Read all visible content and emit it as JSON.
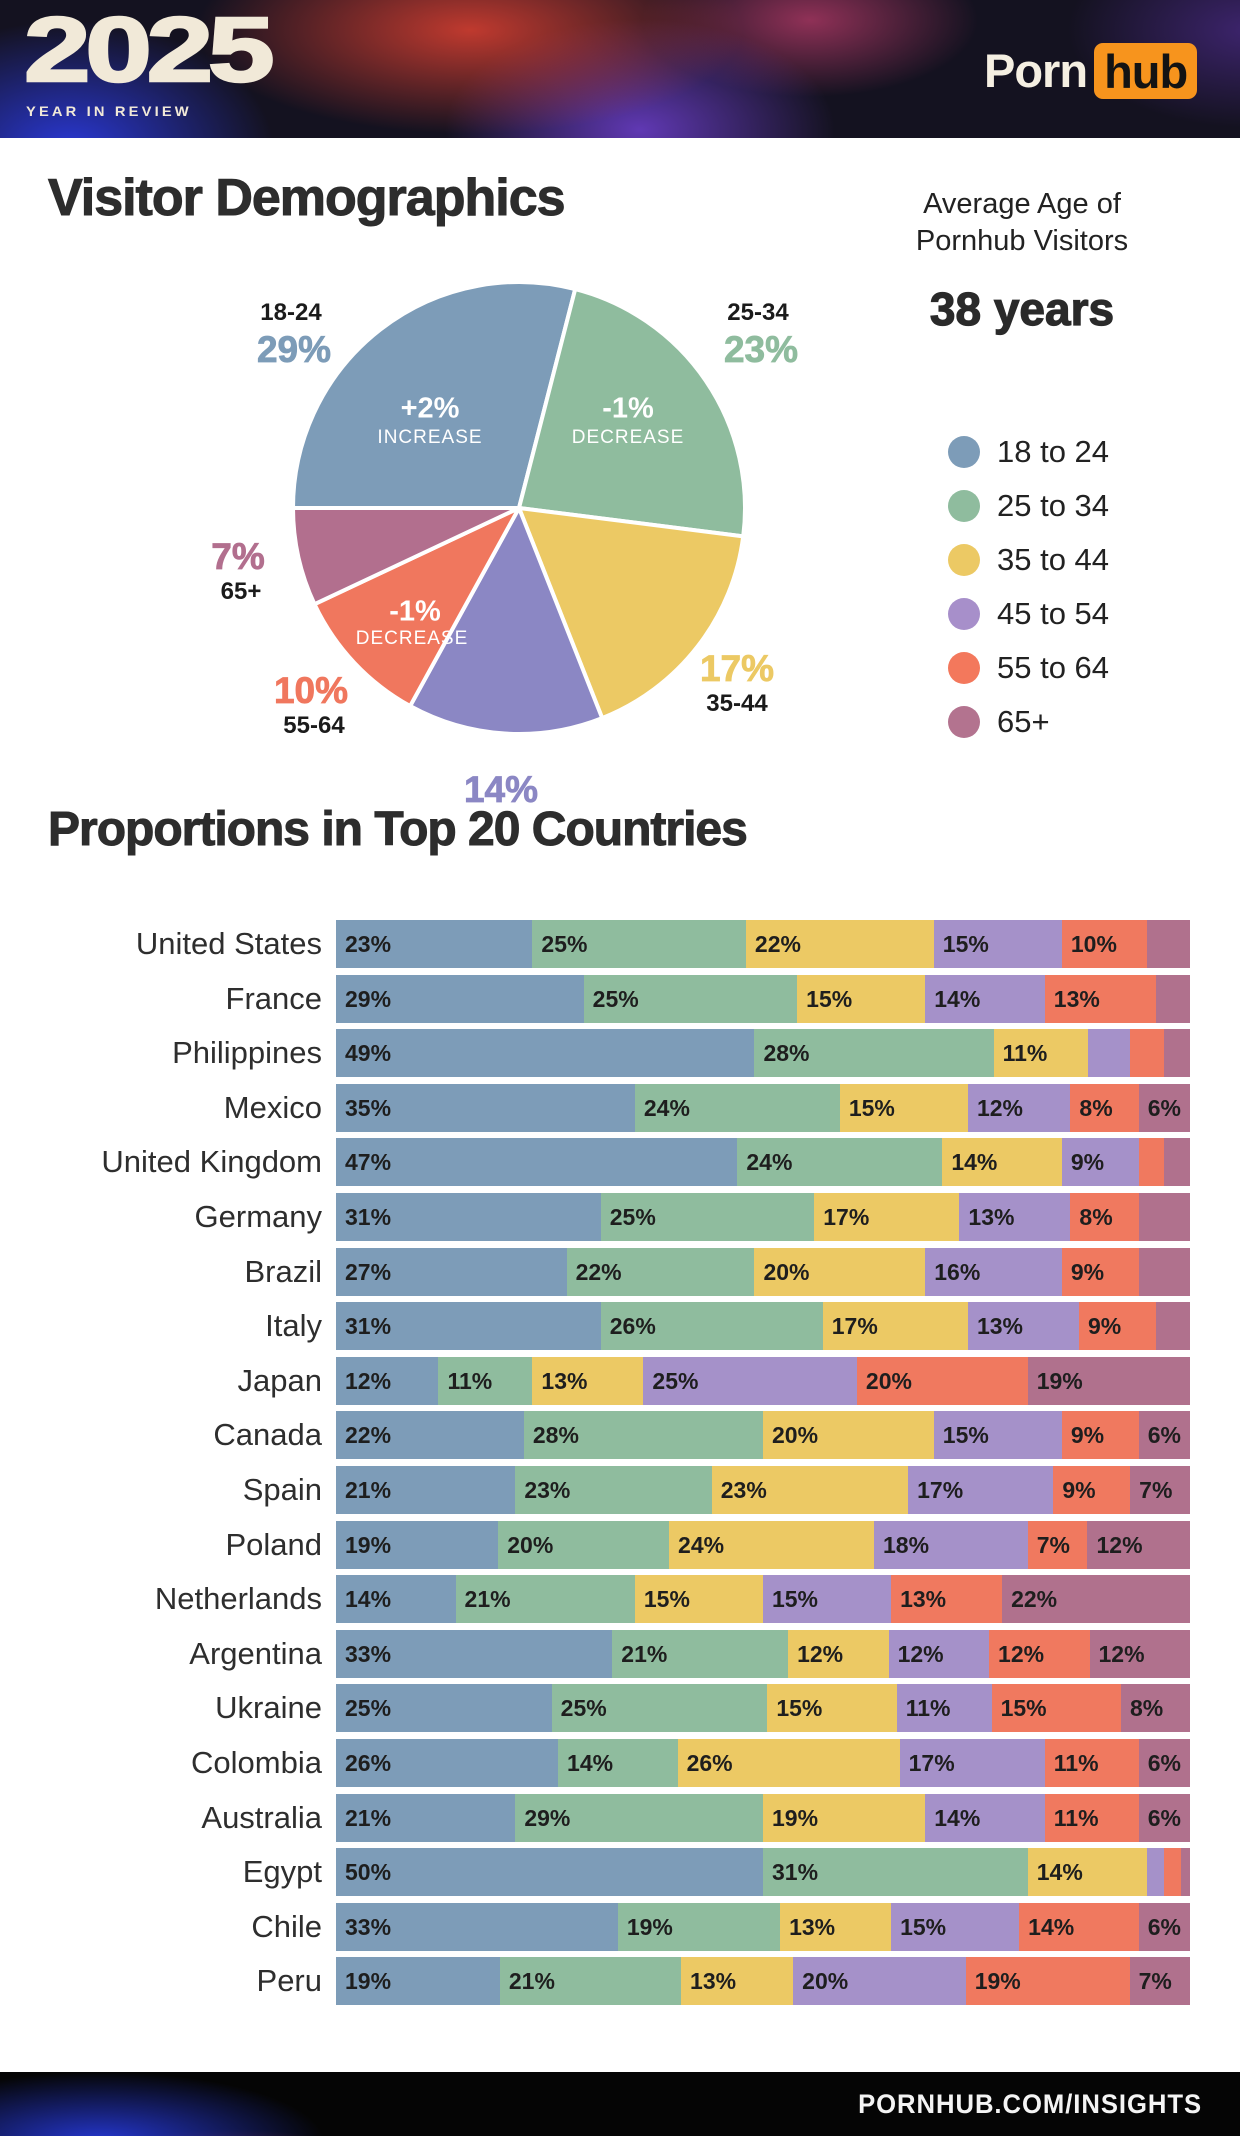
{
  "header": {
    "year": "2025",
    "tagline": "YEAR IN REVIEW",
    "logo_text": "Porn",
    "logo_badge": "hub"
  },
  "average_age": {
    "line1": "Average Age of",
    "line2": "Pornhub Visitors",
    "value": "38 years"
  },
  "footer": {
    "url": "PORNHUB.COM/INSIGHTS"
  },
  "colors": {
    "brand_orange": "#f7941d",
    "cream": "#f1e9d8",
    "title_ink": "#2d2d2d",
    "page_bg": "#ffffff"
  },
  "chart_data": [
    {
      "type": "pie",
      "title": "Visitor Demographics",
      "start_angle_deg": 270,
      "direction": "clockwise",
      "legend_position": "right",
      "slices": [
        {
          "range": "18-24",
          "legend": "18 to 24",
          "value": 29,
          "pct": "29%",
          "color": "#7d9cb8",
          "legend_color": "#7d9cb8",
          "change": "+2%",
          "change_word": "INCREASE"
        },
        {
          "range": "25-34",
          "legend": "25 to 34",
          "value": 23,
          "pct": "23%",
          "color": "#8fbc9e",
          "legend_color": "#8fbc9e",
          "change": "-1%",
          "change_word": "DECREASE"
        },
        {
          "range": "35-44",
          "legend": "35 to 44",
          "value": 17,
          "pct": "17%",
          "color": "#ecc964",
          "legend_color": "#ecc964",
          "change": null,
          "change_word": null
        },
        {
          "range": "45-54",
          "legend": "45 to 54",
          "value": 14,
          "pct": "14%",
          "color": "#8b87c4",
          "legend_color": "#a78fca",
          "change": null,
          "change_word": null
        },
        {
          "range": "55-64",
          "legend": "55 to 64",
          "value": 10,
          "pct": "10%",
          "color": "#f0775e",
          "legend_color": "#f3785c",
          "change": "-1%",
          "change_word": "DECREASE"
        },
        {
          "range": "65+",
          "legend": "65+",
          "value": 7,
          "pct": "7%",
          "color": "#b26f8e",
          "legend_color": "#b3738f",
          "change": null,
          "change_word": null
        }
      ]
    },
    {
      "type": "bar",
      "stacked": true,
      "title": "Proportions in Top 20 Countries",
      "series": [
        "18 to 24",
        "25 to 34",
        "35 to 44",
        "45 to 54",
        "55 to 64",
        "65+"
      ],
      "colors": [
        "#7d9cb8",
        "#8fbc9e",
        "#ecc964",
        "#a591c9",
        "#f0795f",
        "#b0718d"
      ],
      "countries": [
        {
          "name": "United States",
          "values": [
            23,
            25,
            22,
            15,
            10,
            5
          ],
          "labels": [
            "23%",
            "25%",
            "22%",
            "15%",
            "10%",
            ""
          ]
        },
        {
          "name": "France",
          "values": [
            29,
            25,
            15,
            14,
            13,
            4
          ],
          "labels": [
            "29%",
            "25%",
            "15%",
            "14%",
            "13%",
            ""
          ]
        },
        {
          "name": "Philippines",
          "values": [
            49,
            28,
            11,
            5,
            4,
            3
          ],
          "labels": [
            "49%",
            "28%",
            "11%",
            "",
            "",
            ""
          ]
        },
        {
          "name": "Mexico",
          "values": [
            35,
            24,
            15,
            12,
            8,
            6
          ],
          "labels": [
            "35%",
            "24%",
            "15%",
            "12%",
            "8%",
            "6%"
          ]
        },
        {
          "name": "United Kingdom",
          "values": [
            47,
            24,
            14,
            9,
            3,
            3
          ],
          "labels": [
            "47%",
            "24%",
            "14%",
            "9%",
            "",
            ""
          ]
        },
        {
          "name": "Germany",
          "values": [
            31,
            25,
            17,
            13,
            8,
            6
          ],
          "labels": [
            "31%",
            "25%",
            "17%",
            "13%",
            "8%",
            ""
          ]
        },
        {
          "name": "Brazil",
          "values": [
            27,
            22,
            20,
            16,
            9,
            6
          ],
          "labels": [
            "27%",
            "22%",
            "20%",
            "16%",
            "9%",
            ""
          ]
        },
        {
          "name": "Italy",
          "values": [
            31,
            26,
            17,
            13,
            9,
            4
          ],
          "labels": [
            "31%",
            "26%",
            "17%",
            "13%",
            "9%",
            ""
          ]
        },
        {
          "name": "Japan",
          "values": [
            12,
            11,
            13,
            25,
            20,
            19
          ],
          "labels": [
            "12%",
            "11%",
            "13%",
            "25%",
            "20%",
            "19%"
          ]
        },
        {
          "name": "Canada",
          "values": [
            22,
            28,
            20,
            15,
            9,
            6
          ],
          "labels": [
            "22%",
            "28%",
            "20%",
            "15%",
            "9%",
            "6%"
          ]
        },
        {
          "name": "Spain",
          "values": [
            21,
            23,
            23,
            17,
            9,
            7
          ],
          "labels": [
            "21%",
            "23%",
            "23%",
            "17%",
            "9%",
            "7%"
          ]
        },
        {
          "name": "Poland",
          "values": [
            19,
            20,
            24,
            18,
            7,
            12
          ],
          "labels": [
            "19%",
            "20%",
            "24%",
            "18%",
            "7%",
            "12%"
          ]
        },
        {
          "name": "Netherlands",
          "values": [
            14,
            21,
            15,
            15,
            13,
            22
          ],
          "labels": [
            "14%",
            "21%",
            "15%",
            "15%",
            "13%",
            "22%"
          ]
        },
        {
          "name": "Argentina",
          "values": [
            33,
            21,
            12,
            12,
            12,
            12
          ],
          "labels": [
            "33%",
            "21%",
            "12%",
            "12%",
            "12%",
            "12%"
          ]
        },
        {
          "name": "Ukraine",
          "values": [
            25,
            25,
            15,
            11,
            15,
            8
          ],
          "labels": [
            "25%",
            "25%",
            "15%",
            "11%",
            "15%",
            "8%"
          ]
        },
        {
          "name": "Colombia",
          "values": [
            26,
            14,
            26,
            17,
            11,
            6
          ],
          "labels": [
            "26%",
            "14%",
            "26%",
            "17%",
            "11%",
            "6%"
          ]
        },
        {
          "name": "Australia",
          "values": [
            21,
            29,
            19,
            14,
            11,
            6
          ],
          "labels": [
            "21%",
            "29%",
            "19%",
            "14%",
            "11%",
            "6%"
          ]
        },
        {
          "name": "Egypt",
          "values": [
            50,
            31,
            14,
            2,
            2,
            1
          ],
          "labels": [
            "50%",
            "31%",
            "14%",
            "",
            "",
            ""
          ]
        },
        {
          "name": "Chile",
          "values": [
            33,
            19,
            13,
            15,
            14,
            6
          ],
          "labels": [
            "33%",
            "19%",
            "13%",
            "15%",
            "14%",
            "6%"
          ]
        },
        {
          "name": "Peru",
          "values": [
            19,
            21,
            13,
            20,
            19,
            7
          ],
          "labels": [
            "19%",
            "21%",
            "13%",
            "20%",
            "19%",
            "7%"
          ]
        }
      ]
    }
  ]
}
